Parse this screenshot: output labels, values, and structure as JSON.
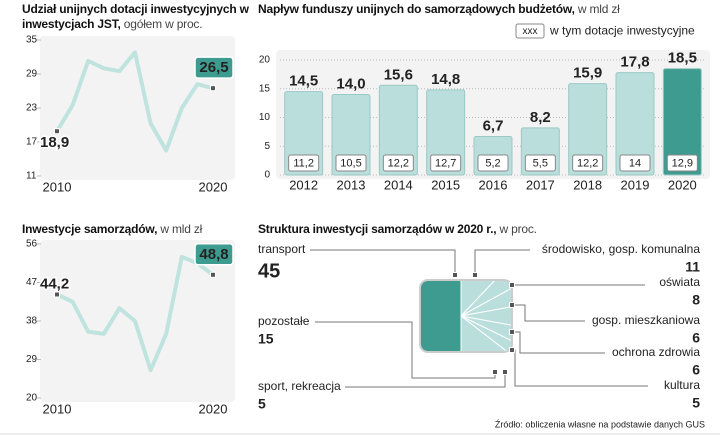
{
  "chart_data": [
    {
      "type": "line",
      "title": "Udział unijnych dotacji inwestycyjnych w inwestycjach JST,",
      "subtitle": "ogółem w proc.",
      "x": [
        2010,
        2011,
        2012,
        2013,
        2014,
        2015,
        2016,
        2017,
        2018,
        2019,
        2020
      ],
      "values": [
        18.9,
        23.5,
        31.3,
        30,
        29.5,
        32.8,
        20.3,
        15.5,
        23,
        27.2,
        26.5
      ],
      "value_labels": [
        "18,9",
        null,
        null,
        null,
        null,
        null,
        null,
        null,
        null,
        null,
        "26,5"
      ],
      "color": "#bfe3df",
      "xlim": [
        2010,
        2020
      ],
      "xticks": [
        2010,
        2020
      ],
      "ylim": [
        11,
        35
      ],
      "yticks": [
        11,
        17,
        23,
        29,
        35
      ]
    },
    {
      "type": "bar",
      "title": "Napływ funduszy unijnych do samorządowych budżetów,",
      "subtitle": "w mld zł",
      "categories": [
        "2012",
        "2013",
        "2014",
        "2015",
        "2016",
        "2017",
        "2018",
        "2019",
        "2020"
      ],
      "series": [
        {
          "values": [
            14.5,
            14.0,
            15.6,
            14.8,
            6.7,
            8.2,
            15.9,
            17.8,
            18.5
          ],
          "value_labels": [
            "14,5",
            "14,0",
            "15,6",
            "14,8",
            "6,7",
            "8,2",
            "15,9",
            "17,8",
            "18,5"
          ],
          "colors": [
            "#b9dedb",
            "#b9dedb",
            "#b9dedb",
            "#b9dedb",
            "#b9dedb",
            "#b9dedb",
            "#b9dedb",
            "#b9dedb",
            "#3e9b8f"
          ]
        },
        {
          "name": "w tym dotacje inwestycyjne",
          "legend_sample": "xxx",
          "values": [
            11.2,
            10.5,
            12.2,
            12.7,
            5.2,
            5.5,
            12.2,
            14,
            12.9
          ],
          "value_labels": [
            "11,2",
            "10,5",
            "12,2",
            "12,7",
            "5,2",
            "5,5",
            "12,2",
            "14",
            "12,9"
          ]
        }
      ],
      "ylim": [
        0,
        20
      ],
      "yticks": [
        0,
        5,
        10,
        15,
        20
      ],
      "grid": true
    },
    {
      "type": "line",
      "title": "Inwestycje samorządów,",
      "subtitle": "w mld zł",
      "x": [
        2010,
        2011,
        2012,
        2013,
        2014,
        2015,
        2016,
        2017,
        2018,
        2019,
        2020
      ],
      "values": [
        44.2,
        42.5,
        35.5,
        35,
        41,
        38,
        26.5,
        35,
        53,
        51.5,
        48.8
      ],
      "value_labels": [
        "44,2",
        null,
        null,
        null,
        null,
        null,
        null,
        null,
        null,
        null,
        "48,8"
      ],
      "color": "#bfe3df",
      "xlim": [
        2010,
        2020
      ],
      "xticks": [
        2010,
        2020
      ],
      "ylim": [
        20,
        56
      ],
      "yticks": [
        20,
        29,
        38,
        47,
        56
      ]
    },
    {
      "type": "treemap",
      "title": "Struktura inwestycji samorządów w 2020 r.,",
      "subtitle": "w proc.",
      "categories": [
        "transport",
        "środowisko, gosp. komunalna",
        "oświata",
        "gosp. mieszkaniowa",
        "ochrona zdrowia",
        "kultura",
        "sport, rekreacja",
        "pozostałe"
      ],
      "values": [
        45,
        11,
        8,
        6,
        6,
        5,
        5,
        15
      ],
      "colors": [
        "#3e9b8f",
        "#b9dedb",
        "#b9dedb",
        "#b9dedb",
        "#b9dedb",
        "#b9dedb",
        "#b9dedb",
        "#b9dedb"
      ]
    }
  ],
  "source": "Źródło: obliczenia własne na podstawie danych GUS"
}
